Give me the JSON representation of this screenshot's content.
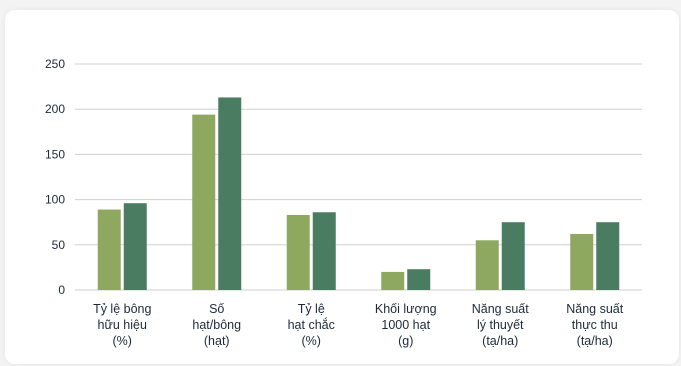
{
  "colors": {
    "series_a": "#8ea85f",
    "series_b": "#4a7c62",
    "grid": "#cfcfcf",
    "text": "#1e2a3a"
  },
  "chart_data": {
    "type": "bar",
    "title": "",
    "xlabel": "",
    "ylabel": "",
    "ylim": [
      0,
      250
    ],
    "yticks": [
      0,
      50,
      100,
      150,
      200,
      250
    ],
    "grid": true,
    "legend": "none",
    "categories": [
      [
        "Tỷ lệ bông",
        "hữu hiệu",
        "(%)"
      ],
      [
        "Số",
        "hạt/bông",
        "(hạt)"
      ],
      [
        "Tỷ lệ",
        "hạt chắc",
        "(%)"
      ],
      [
        "Khối lượng",
        "1000 hạt",
        "(g)"
      ],
      [
        "Năng suất",
        "lý thuyết",
        "(tạ/ha)"
      ],
      [
        "Năng suất",
        "thực thu",
        "(tạ/ha)"
      ]
    ],
    "series": [
      {
        "values": [
          89,
          194,
          83,
          20,
          55,
          62
        ]
      },
      {
        "values": [
          96,
          213,
          86,
          23,
          75,
          75
        ]
      }
    ]
  }
}
